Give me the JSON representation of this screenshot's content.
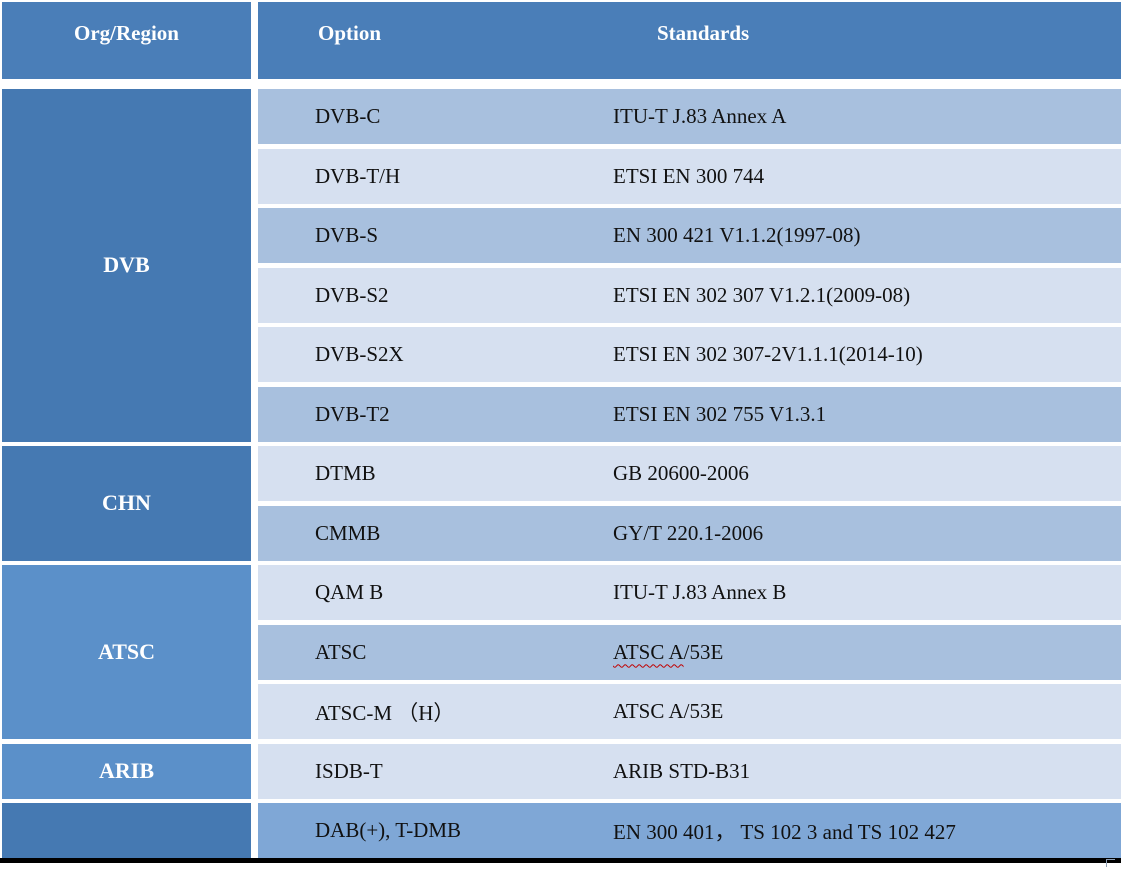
{
  "table": {
    "header": {
      "org_region": "Org/Region",
      "option": "Option",
      "standards": "Standards"
    },
    "groups": [
      {
        "label": "DVB",
        "row_span": 6,
        "shade": "dark"
      },
      {
        "label": "CHN",
        "row_span": 2,
        "shade": "dark"
      },
      {
        "label": "ATSC",
        "row_span": 3,
        "shade": "light"
      },
      {
        "label": "ARIB",
        "row_span": 1,
        "shade": "light"
      },
      {
        "label": "",
        "row_span": 1,
        "shade": "dark"
      }
    ],
    "rows": [
      {
        "option": "DVB-C",
        "standard": "ITU-T J.83 Annex A",
        "band": "dark"
      },
      {
        "option": "DVB-T/H",
        "standard": "ETSI EN 300 744",
        "band": "light"
      },
      {
        "option": "DVB-S",
        "standard": "EN 300 421 V1.1.2(1997-08)",
        "band": "dark"
      },
      {
        "option": "DVB-S2",
        "standard": "ETSI EN 302 307 V1.2.1(2009-08)",
        "band": "light"
      },
      {
        "option": "DVB-S2X",
        "standard": "ETSI EN 302 307-2V1.1.1(2014-10)",
        "band": "light"
      },
      {
        "option": "DVB-T2",
        "standard": "ETSI EN 302 755 V1.3.1",
        "band": "dark"
      },
      {
        "option": "DTMB",
        "standard": "GB 20600-2006",
        "band": "light"
      },
      {
        "option": "CMMB",
        "standard": "GY/T 220.1-2006",
        "band": "dark"
      },
      {
        "option": "QAM B",
        "standard": "ITU-T J.83 Annex B",
        "band": "light"
      },
      {
        "option": "ATSC",
        "standard": "ATSC A/53E",
        "band": "dark",
        "standard_parts": {
          "underlined": "ATSC A",
          "rest": "/53E"
        }
      },
      {
        "option": "ATSC-M （H）",
        "standard": "ATSC A/53E",
        "band": "light"
      },
      {
        "option": "ISDB-T",
        "standard": "ARIB STD-B31",
        "band": "light"
      },
      {
        "option": "DAB(+), T-DMB",
        "standard": "EN 300 401， TS 102 3 and TS 102 427",
        "band": "medium"
      }
    ],
    "colors": {
      "header_blue": "#4a7eb8",
      "group_dark_blue": "#4579b2",
      "group_light_blue": "#5b90c9",
      "row_dark": "#a8c0de",
      "row_light": "#d6e0f0",
      "row_medium": "#7fa7d6",
      "header_text": "#ffffff",
      "body_text": "#111111",
      "spellcheck_red": "#c00000",
      "bottom_bar": "#000000"
    }
  }
}
